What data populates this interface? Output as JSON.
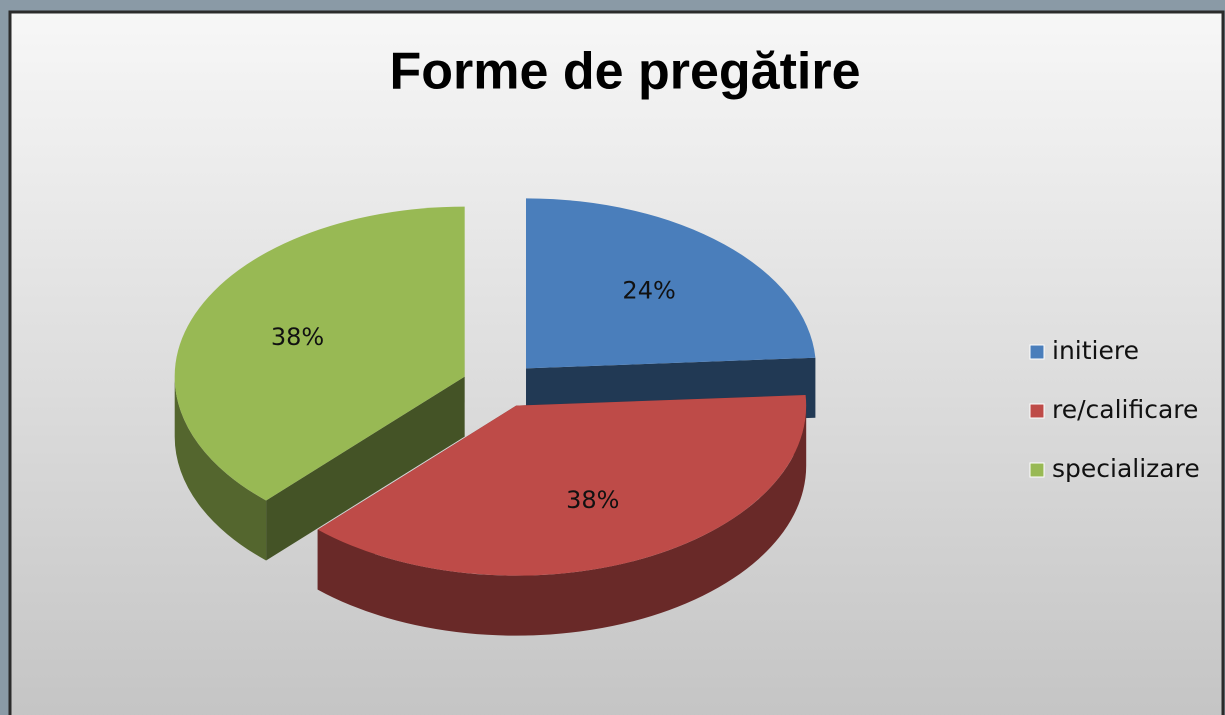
{
  "chart_data": {
    "type": "pie3d",
    "title": "Forme de pregătire",
    "categories": [
      "initiere",
      "re/calificare",
      "specializare"
    ],
    "values": [
      24,
      38,
      38
    ],
    "value_labels": [
      "24%",
      "38%",
      "38%"
    ],
    "colors": [
      "#4a7ebb",
      "#be4b48",
      "#98b954"
    ],
    "legend": "right"
  }
}
